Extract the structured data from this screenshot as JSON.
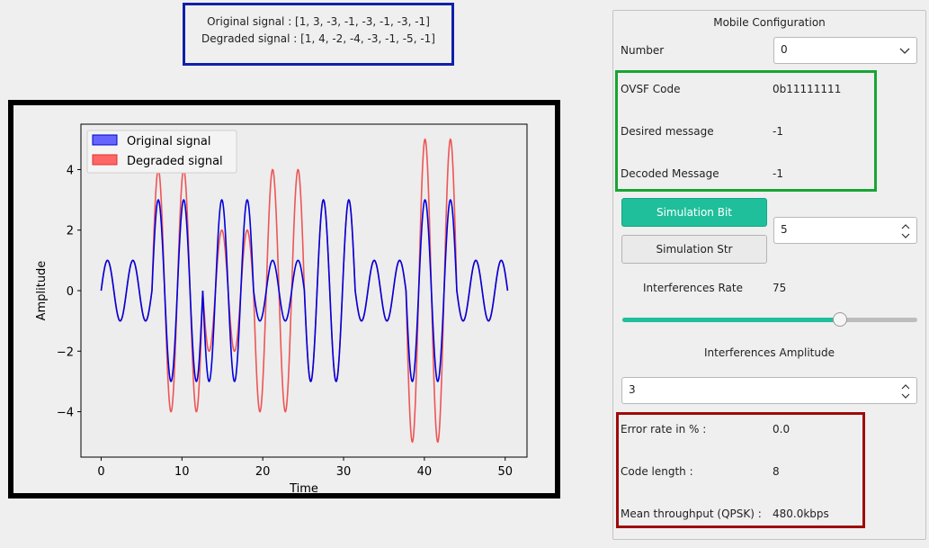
{
  "signals": {
    "original_line": "Original signal : [1, 3, -3, -1, -3, -1, -3, -1]",
    "degraded_line": "Degraded signal : [1, 4, -2, -4, -3, -1, -5, -1]"
  },
  "chart_data": {
    "type": "line",
    "xlabel": "Time",
    "ylabel": "Amplitude",
    "xlim": [
      -2.5,
      52.7
    ],
    "ylim": [
      -5.5,
      5.5
    ],
    "x_ticks": [
      "0",
      "10",
      "20",
      "30",
      "40",
      "50"
    ],
    "y_ticks": [
      "4",
      "2",
      "0",
      "−2",
      "−4"
    ],
    "x_tick_values": [
      0,
      10,
      20,
      30,
      40,
      50
    ],
    "y_tick_values": [
      4,
      2,
      0,
      -2,
      -4
    ],
    "symbol_period": 2.2,
    "legend_position": "upper-left",
    "grid": false,
    "series": [
      {
        "name": "Original signal",
        "color": "#0000dd",
        "amplitudes": [
          1,
          3,
          -3,
          -1,
          -3,
          -1,
          -3,
          -1
        ]
      },
      {
        "name": "Degraded signal",
        "color": "#ee5555",
        "amplitudes": [
          1,
          4,
          -2,
          -4,
          -3,
          -1,
          -5,
          -1
        ]
      }
    ],
    "time_range": [
      0,
      50.3
    ]
  },
  "panel": {
    "title": "Mobile Configuration",
    "number_label": "Number",
    "number_value": "0",
    "ovsf_label": "OVSF Code",
    "ovsf_value": "0b11111111",
    "desired_label": "Desired message",
    "desired_value": "-1",
    "decoded_label": "Decoded Message",
    "decoded_value": "-1",
    "sim_bit_label": "Simulation Bit",
    "sim_str_label": "Simulation Str",
    "spin_value": "5",
    "interf_rate_label": "Interferences Rate",
    "interf_rate_value": "75",
    "slider_fraction": 0.75,
    "interf_amp_label": "Interferences Amplitude",
    "interf_amp_value": "3",
    "error_label": "Error rate in %  :",
    "error_value": "0.0",
    "code_len_label": "Code length :",
    "code_len_value": "8",
    "throughput_label": "Mean throughput (QPSK) :",
    "throughput_value": "480.0kbps"
  },
  "colors": {
    "accent": "#1fbf9b",
    "signal_box_border": "#1020a8",
    "green_box": "#18a532",
    "red_box": "#a00a0a"
  }
}
